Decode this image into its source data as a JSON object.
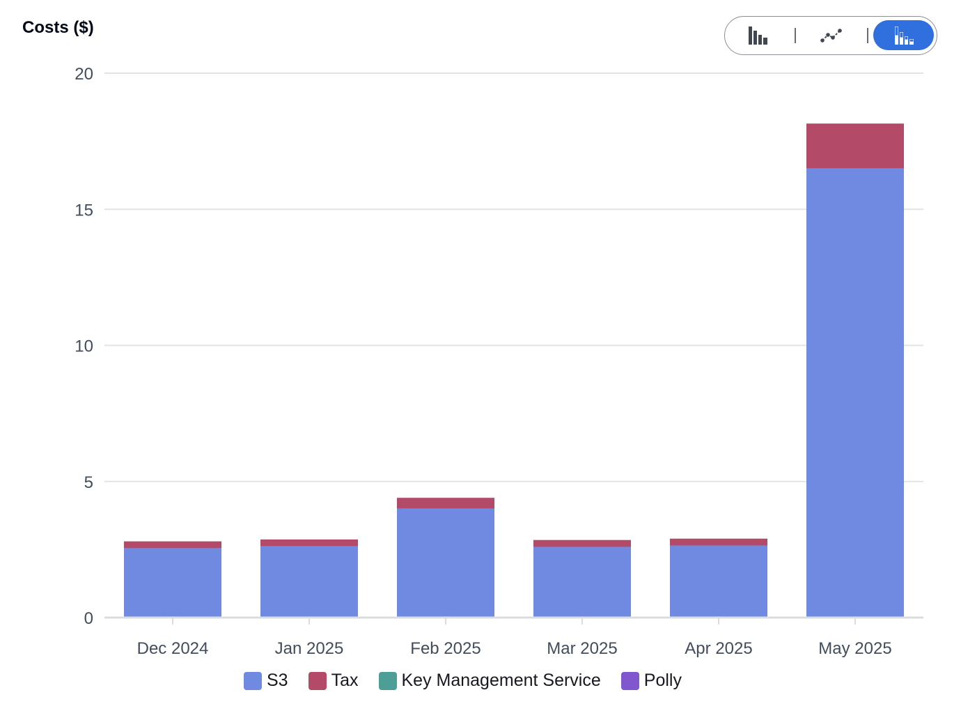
{
  "chart_data": {
    "type": "bar",
    "stacked": true,
    "ylabel": "Costs ($)",
    "xlabel": "",
    "ylim": [
      0,
      20
    ],
    "yticks": [
      0,
      5,
      10,
      15,
      20
    ],
    "grid": true,
    "legend_position": "bottom",
    "categories": [
      "Dec 2024",
      "Jan 2025",
      "Feb 2025",
      "Mar 2025",
      "Apr 2025",
      "May 2025"
    ],
    "series": [
      {
        "name": "S3",
        "color": "#6f8ae0",
        "values": [
          2.55,
          2.62,
          4.0,
          2.6,
          2.65,
          16.5
        ]
      },
      {
        "name": "Tax",
        "color": "#b24a68",
        "values": [
          0.25,
          0.25,
          0.4,
          0.25,
          0.25,
          1.65
        ]
      },
      {
        "name": "Key Management Service",
        "color": "#4c9e97",
        "values": [
          0,
          0,
          0,
          0,
          0,
          0
        ]
      },
      {
        "name": "Polly",
        "color": "#8157cf",
        "values": [
          0,
          0,
          0,
          0,
          0,
          0
        ]
      }
    ]
  },
  "view_toggle": {
    "options": [
      {
        "name": "bar-chart",
        "icon": "bar-chart-icon",
        "selected": false
      },
      {
        "name": "line-chart",
        "icon": "line-chart-icon",
        "selected": false
      },
      {
        "name": "stacked-bar-chart",
        "icon": "stacked-bar-chart-icon",
        "selected": true
      }
    ],
    "accent_color": "#2f6fde"
  }
}
